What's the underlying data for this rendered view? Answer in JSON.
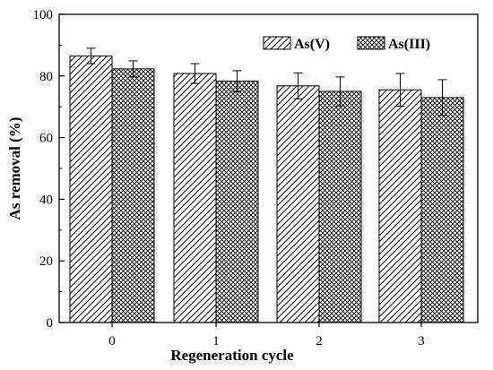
{
  "chart_data": {
    "type": "bar",
    "title": "",
    "xlabel": "Regeneration cycle",
    "ylabel": "As removal (%)",
    "categories": [
      "0",
      "1",
      "2",
      "3"
    ],
    "ylim": [
      0,
      100
    ],
    "yticks": [
      0,
      20,
      40,
      60,
      80,
      100
    ],
    "legend_position": "top-right",
    "grid": false,
    "series": [
      {
        "name": "As(V)",
        "pattern": "diagonal-hatch",
        "values": [
          86.5,
          80.8,
          76.8,
          75.5
        ],
        "errors": [
          2.5,
          3.2,
          4.2,
          5.3
        ]
      },
      {
        "name": "As(III)",
        "pattern": "cross-hatch",
        "values": [
          82.3,
          78.3,
          75.0,
          73.0
        ],
        "errors": [
          2.6,
          3.4,
          4.7,
          5.8
        ]
      }
    ]
  }
}
